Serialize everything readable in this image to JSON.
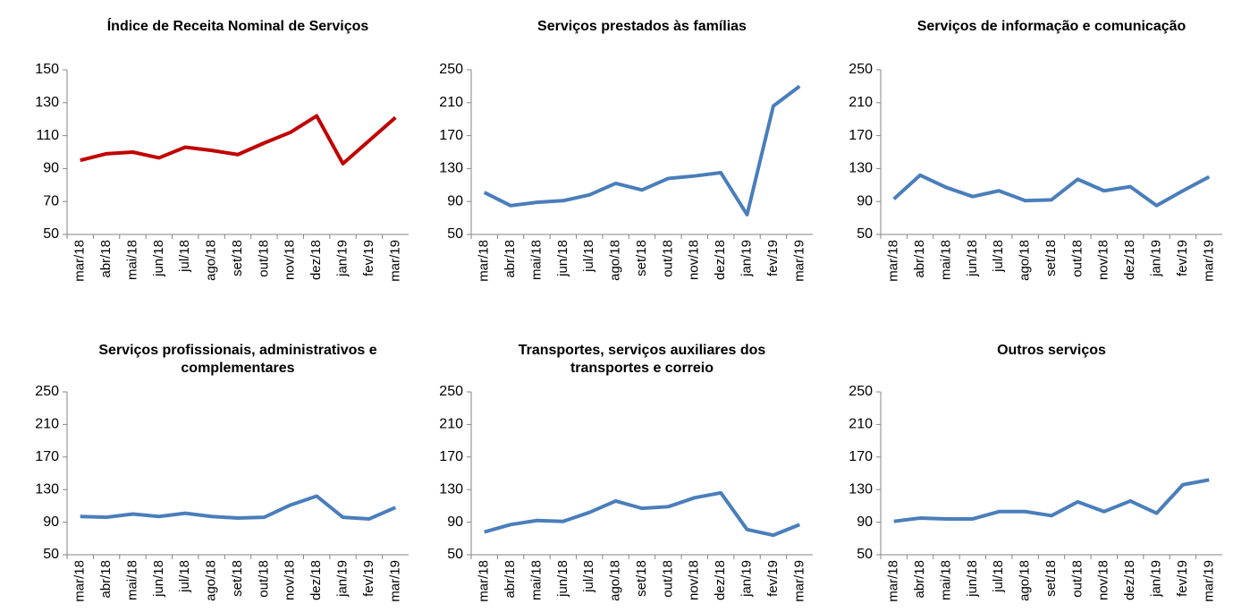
{
  "chart_data": [
    {
      "type": "line",
      "title": "Índice de Receita Nominal de Serviços",
      "categories": [
        "mar/18",
        "abr/18",
        "mai/18",
        "jun/18",
        "jul/18",
        "ago/18",
        "set/18",
        "out/18",
        "nov/18",
        "dez/18",
        "jan/19",
        "fev/19",
        "mar/19"
      ],
      "values": [
        95,
        99,
        100,
        96.5,
        103,
        101,
        98.5,
        105.5,
        112,
        122,
        93,
        107,
        121
      ],
      "color": "#c00000",
      "ylim": [
        50,
        150
      ],
      "yticks": [
        50,
        70,
        90,
        110,
        130,
        150
      ]
    },
    {
      "type": "line",
      "title": "Serviços prestados às famílias",
      "categories": [
        "mar/18",
        "abr/18",
        "mai/18",
        "jun/18",
        "jul/18",
        "ago/18",
        "set/18",
        "out/18",
        "nov/18",
        "dez/18",
        "jan/19",
        "fev/19",
        "mar/19"
      ],
      "values": [
        101,
        85,
        89,
        91,
        98,
        112,
        104,
        118,
        121,
        125,
        74,
        206,
        230
      ],
      "color": "#4a7ebb",
      "ylim": [
        50,
        250
      ],
      "yticks": [
        50,
        90,
        130,
        170,
        210,
        250
      ]
    },
    {
      "type": "line",
      "title": "Serviços de informação e comunicação",
      "categories": [
        "mar/18",
        "abr/18",
        "mai/18",
        "jun/18",
        "jul/18",
        "ago/18",
        "set/18",
        "out/18",
        "nov/18",
        "dez/18",
        "jan/19",
        "fev/19",
        "mar/19"
      ],
      "values": [
        93,
        122,
        107,
        96,
        103,
        91,
        92,
        117,
        103,
        108,
        85,
        103,
        120
      ],
      "color": "#4a7ebb",
      "ylim": [
        50,
        250
      ],
      "yticks": [
        50,
        90,
        130,
        170,
        210,
        250
      ]
    },
    {
      "type": "line",
      "title": "Serviços profissionais, administrativos e complementares",
      "categories": [
        "mar/18",
        "abr/18",
        "mai/18",
        "jun/18",
        "jul/18",
        "ago/18",
        "set/18",
        "out/18",
        "nov/18",
        "dez/18",
        "jan/19",
        "fev/19",
        "mar/19"
      ],
      "values": [
        97,
        96,
        100,
        97,
        101,
        97,
        95,
        96,
        111,
        122,
        96,
        94,
        108
      ],
      "color": "#4a7ebb",
      "ylim": [
        50,
        250
      ],
      "yticks": [
        50,
        90,
        130,
        170,
        210,
        250
      ]
    },
    {
      "type": "line",
      "title": "Transportes, serviços auxiliares dos transportes e correio",
      "categories": [
        "mar/18",
        "abr/18",
        "mai/18",
        "jun/18",
        "jul/18",
        "ago/18",
        "set/18",
        "out/18",
        "nov/18",
        "dez/18",
        "jan/19",
        "fev/19",
        "mar/19"
      ],
      "values": [
        78,
        87,
        92,
        91,
        102,
        116,
        107,
        109,
        120,
        126,
        81,
        74,
        87
      ],
      "color": "#4a7ebb",
      "ylim": [
        50,
        250
      ],
      "yticks": [
        50,
        90,
        130,
        170,
        210,
        250
      ]
    },
    {
      "type": "line",
      "title": "Outros serviços",
      "categories": [
        "mar/18",
        "abr/18",
        "mai/18",
        "jun/18",
        "jul/18",
        "ago/18",
        "set/18",
        "out/18",
        "nov/18",
        "dez/18",
        "jan/19",
        "fev/19",
        "mar/19"
      ],
      "values": [
        91,
        95,
        94,
        94,
        103,
        103,
        98,
        115,
        103,
        116,
        101,
        136,
        142
      ],
      "color": "#4a7ebb",
      "ylim": [
        50,
        250
      ],
      "yticks": [
        50,
        90,
        130,
        170,
        210,
        250
      ]
    }
  ]
}
